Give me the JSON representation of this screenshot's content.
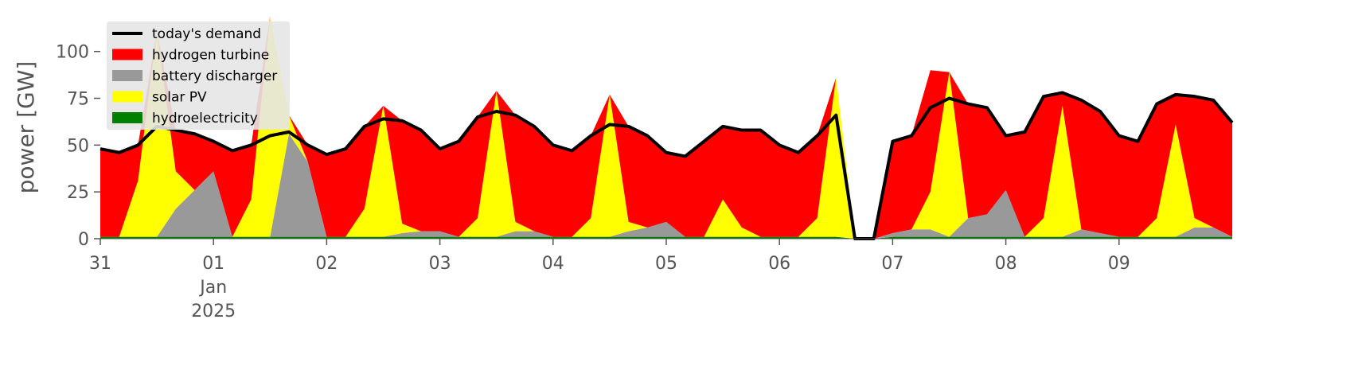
{
  "chart_data": {
    "type": "stacked-area",
    "ylabel": "power [GW]",
    "x": [
      0,
      4,
      8,
      12,
      16,
      20,
      24,
      28,
      32,
      36,
      40,
      44,
      48,
      52,
      56,
      60,
      64,
      68,
      72,
      76,
      80,
      84,
      88,
      92,
      96,
      100,
      104,
      108,
      112,
      116,
      120,
      124,
      128,
      132,
      136,
      140,
      144,
      148,
      152,
      156,
      160,
      164,
      168,
      172,
      176,
      180,
      184,
      188,
      192,
      196,
      200,
      204,
      208,
      212,
      216,
      220,
      224,
      228,
      232,
      236,
      240
    ],
    "xlim": [
      0,
      240
    ],
    "xticks": [
      {
        "value": 0,
        "label": "31"
      },
      {
        "value": 24,
        "label": "01",
        "sublabel": [
          "Jan",
          "2025"
        ]
      },
      {
        "value": 48,
        "label": "02"
      },
      {
        "value": 72,
        "label": "03"
      },
      {
        "value": 96,
        "label": "04"
      },
      {
        "value": 120,
        "label": "05"
      },
      {
        "value": 144,
        "label": "06"
      },
      {
        "value": 168,
        "label": "07"
      },
      {
        "value": 192,
        "label": "08"
      },
      {
        "value": 216,
        "label": "09"
      }
    ],
    "ylim": [
      0,
      119
    ],
    "yticks": [
      0,
      25,
      50,
      75,
      100
    ],
    "legend": "upper left",
    "line": {
      "name": "today's demand",
      "color": "#000000",
      "values": [
        48,
        46,
        50,
        60,
        58,
        56,
        52,
        47,
        50,
        55,
        57,
        50,
        45,
        48,
        60,
        64,
        63,
        58,
        48,
        52,
        65,
        68,
        66,
        60,
        50,
        47,
        55,
        61,
        60,
        55,
        46,
        44,
        52,
        60,
        58,
        58,
        50,
        46,
        55,
        66,
        0,
        0,
        52,
        55,
        70,
        75,
        72,
        70,
        55,
        57,
        76,
        78,
        74,
        68,
        55,
        52,
        72,
        77,
        76,
        74,
        62
      ]
    },
    "series": [
      {
        "name": "hydrogen turbine",
        "color": "#ff0000",
        "values": [
          47,
          45,
          19,
          0,
          22,
          30,
          16,
          46,
          29,
          0,
          0,
          9,
          44,
          47,
          44,
          0,
          55,
          54,
          44,
          51,
          54,
          0,
          57,
          56,
          49,
          46,
          44,
          0,
          51,
          49,
          37,
          43,
          51,
          39,
          52,
          57,
          49,
          45,
          44,
          0,
          0,
          0,
          49,
          50,
          65,
          0,
          61,
          57,
          29,
          56,
          65,
          7,
          69,
          65,
          54,
          51,
          61,
          16,
          65,
          68,
          61
        ]
      },
      {
        "name": "battery discharger",
        "color": "#999999",
        "values": [
          0,
          0,
          0,
          0,
          15,
          25,
          35,
          0,
          0,
          0,
          55,
          40,
          0,
          0,
          0,
          0,
          2,
          3,
          3,
          0,
          0,
          0,
          3,
          3,
          0,
          0,
          0,
          0,
          3,
          5,
          8,
          0,
          0,
          0,
          0,
          0,
          0,
          0,
          0,
          0,
          0,
          0,
          2,
          4,
          4,
          0,
          10,
          12,
          25,
          0,
          0,
          0,
          4,
          2,
          0,
          0,
          0,
          0,
          5,
          5,
          0
        ]
      },
      {
        "name": "solar PV",
        "color": "#ffff00",
        "values": [
          0,
          0,
          30,
          110,
          20,
          0,
          0,
          0,
          20,
          118,
          10,
          0,
          0,
          0,
          15,
          70,
          5,
          0,
          0,
          0,
          10,
          78,
          5,
          0,
          0,
          0,
          10,
          76,
          5,
          0,
          0,
          0,
          0,
          20,
          5,
          0,
          0,
          0,
          10,
          85,
          0,
          0,
          0,
          0,
          20,
          88,
          0,
          0,
          0,
          0,
          10,
          70,
          0,
          0,
          0,
          0,
          10,
          60,
          5,
          0,
          0
        ]
      },
      {
        "name": "hydroelectricity",
        "color": "#008000",
        "values": [
          1,
          1,
          1,
          1,
          1,
          1,
          1,
          1,
          1,
          1,
          1,
          1,
          1,
          1,
          1,
          1,
          1,
          1,
          1,
          1,
          1,
          1,
          1,
          1,
          1,
          1,
          1,
          1,
          1,
          1,
          1,
          1,
          1,
          1,
          1,
          1,
          1,
          1,
          1,
          1,
          0,
          0,
          1,
          1,
          1,
          1,
          1,
          1,
          1,
          1,
          1,
          1,
          1,
          1,
          1,
          1,
          1,
          1,
          1,
          1,
          1
        ]
      }
    ],
    "stack_order": [
      3,
      1,
      2,
      0
    ]
  }
}
